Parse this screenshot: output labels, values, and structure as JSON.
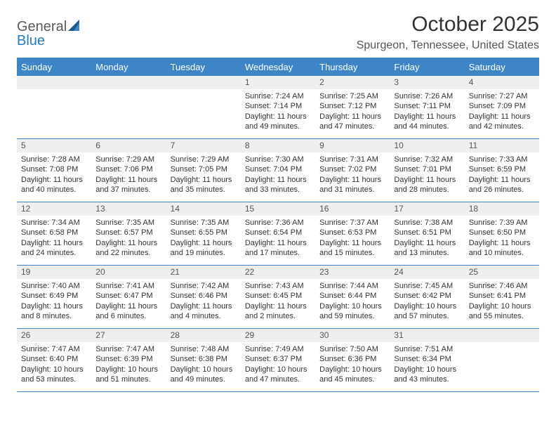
{
  "brand": {
    "line1": "General",
    "line2": "Blue"
  },
  "title": "October 2025",
  "location": "Spurgeon, Tennessee, United States",
  "colors": {
    "header_bg": "#3d85c6",
    "header_text": "#ffffff",
    "daynum_bg": "#efefef",
    "border": "#3d85c6",
    "text": "#333333",
    "brand_gray": "#6b6b6b",
    "brand_blue": "#2a7abf"
  },
  "typography": {
    "title_fontsize": 30,
    "location_fontsize": 16,
    "header_fontsize": 13,
    "daynum_fontsize": 12,
    "body_fontsize": 11
  },
  "day_headers": [
    "Sunday",
    "Monday",
    "Tuesday",
    "Wednesday",
    "Thursday",
    "Friday",
    "Saturday"
  ],
  "weeks": [
    [
      {
        "num": "",
        "lines": []
      },
      {
        "num": "",
        "lines": []
      },
      {
        "num": "",
        "lines": []
      },
      {
        "num": "1",
        "lines": [
          "Sunrise: 7:24 AM",
          "Sunset: 7:14 PM",
          "Daylight: 11 hours and 49 minutes."
        ]
      },
      {
        "num": "2",
        "lines": [
          "Sunrise: 7:25 AM",
          "Sunset: 7:12 PM",
          "Daylight: 11 hours and 47 minutes."
        ]
      },
      {
        "num": "3",
        "lines": [
          "Sunrise: 7:26 AM",
          "Sunset: 7:11 PM",
          "Daylight: 11 hours and 44 minutes."
        ]
      },
      {
        "num": "4",
        "lines": [
          "Sunrise: 7:27 AM",
          "Sunset: 7:09 PM",
          "Daylight: 11 hours and 42 minutes."
        ]
      }
    ],
    [
      {
        "num": "5",
        "lines": [
          "Sunrise: 7:28 AM",
          "Sunset: 7:08 PM",
          "Daylight: 11 hours and 40 minutes."
        ]
      },
      {
        "num": "6",
        "lines": [
          "Sunrise: 7:29 AM",
          "Sunset: 7:06 PM",
          "Daylight: 11 hours and 37 minutes."
        ]
      },
      {
        "num": "7",
        "lines": [
          "Sunrise: 7:29 AM",
          "Sunset: 7:05 PM",
          "Daylight: 11 hours and 35 minutes."
        ]
      },
      {
        "num": "8",
        "lines": [
          "Sunrise: 7:30 AM",
          "Sunset: 7:04 PM",
          "Daylight: 11 hours and 33 minutes."
        ]
      },
      {
        "num": "9",
        "lines": [
          "Sunrise: 7:31 AM",
          "Sunset: 7:02 PM",
          "Daylight: 11 hours and 31 minutes."
        ]
      },
      {
        "num": "10",
        "lines": [
          "Sunrise: 7:32 AM",
          "Sunset: 7:01 PM",
          "Daylight: 11 hours and 28 minutes."
        ]
      },
      {
        "num": "11",
        "lines": [
          "Sunrise: 7:33 AM",
          "Sunset: 6:59 PM",
          "Daylight: 11 hours and 26 minutes."
        ]
      }
    ],
    [
      {
        "num": "12",
        "lines": [
          "Sunrise: 7:34 AM",
          "Sunset: 6:58 PM",
          "Daylight: 11 hours and 24 minutes."
        ]
      },
      {
        "num": "13",
        "lines": [
          "Sunrise: 7:35 AM",
          "Sunset: 6:57 PM",
          "Daylight: 11 hours and 22 minutes."
        ]
      },
      {
        "num": "14",
        "lines": [
          "Sunrise: 7:35 AM",
          "Sunset: 6:55 PM",
          "Daylight: 11 hours and 19 minutes."
        ]
      },
      {
        "num": "15",
        "lines": [
          "Sunrise: 7:36 AM",
          "Sunset: 6:54 PM",
          "Daylight: 11 hours and 17 minutes."
        ]
      },
      {
        "num": "16",
        "lines": [
          "Sunrise: 7:37 AM",
          "Sunset: 6:53 PM",
          "Daylight: 11 hours and 15 minutes."
        ]
      },
      {
        "num": "17",
        "lines": [
          "Sunrise: 7:38 AM",
          "Sunset: 6:51 PM",
          "Daylight: 11 hours and 13 minutes."
        ]
      },
      {
        "num": "18",
        "lines": [
          "Sunrise: 7:39 AM",
          "Sunset: 6:50 PM",
          "Daylight: 11 hours and 10 minutes."
        ]
      }
    ],
    [
      {
        "num": "19",
        "lines": [
          "Sunrise: 7:40 AM",
          "Sunset: 6:49 PM",
          "Daylight: 11 hours and 8 minutes."
        ]
      },
      {
        "num": "20",
        "lines": [
          "Sunrise: 7:41 AM",
          "Sunset: 6:47 PM",
          "Daylight: 11 hours and 6 minutes."
        ]
      },
      {
        "num": "21",
        "lines": [
          "Sunrise: 7:42 AM",
          "Sunset: 6:46 PM",
          "Daylight: 11 hours and 4 minutes."
        ]
      },
      {
        "num": "22",
        "lines": [
          "Sunrise: 7:43 AM",
          "Sunset: 6:45 PM",
          "Daylight: 11 hours and 2 minutes."
        ]
      },
      {
        "num": "23",
        "lines": [
          "Sunrise: 7:44 AM",
          "Sunset: 6:44 PM",
          "Daylight: 10 hours and 59 minutes."
        ]
      },
      {
        "num": "24",
        "lines": [
          "Sunrise: 7:45 AM",
          "Sunset: 6:42 PM",
          "Daylight: 10 hours and 57 minutes."
        ]
      },
      {
        "num": "25",
        "lines": [
          "Sunrise: 7:46 AM",
          "Sunset: 6:41 PM",
          "Daylight: 10 hours and 55 minutes."
        ]
      }
    ],
    [
      {
        "num": "26",
        "lines": [
          "Sunrise: 7:47 AM",
          "Sunset: 6:40 PM",
          "Daylight: 10 hours and 53 minutes."
        ]
      },
      {
        "num": "27",
        "lines": [
          "Sunrise: 7:47 AM",
          "Sunset: 6:39 PM",
          "Daylight: 10 hours and 51 minutes."
        ]
      },
      {
        "num": "28",
        "lines": [
          "Sunrise: 7:48 AM",
          "Sunset: 6:38 PM",
          "Daylight: 10 hours and 49 minutes."
        ]
      },
      {
        "num": "29",
        "lines": [
          "Sunrise: 7:49 AM",
          "Sunset: 6:37 PM",
          "Daylight: 10 hours and 47 minutes."
        ]
      },
      {
        "num": "30",
        "lines": [
          "Sunrise: 7:50 AM",
          "Sunset: 6:36 PM",
          "Daylight: 10 hours and 45 minutes."
        ]
      },
      {
        "num": "31",
        "lines": [
          "Sunrise: 7:51 AM",
          "Sunset: 6:34 PM",
          "Daylight: 10 hours and 43 minutes."
        ]
      },
      {
        "num": "",
        "lines": []
      }
    ]
  ]
}
